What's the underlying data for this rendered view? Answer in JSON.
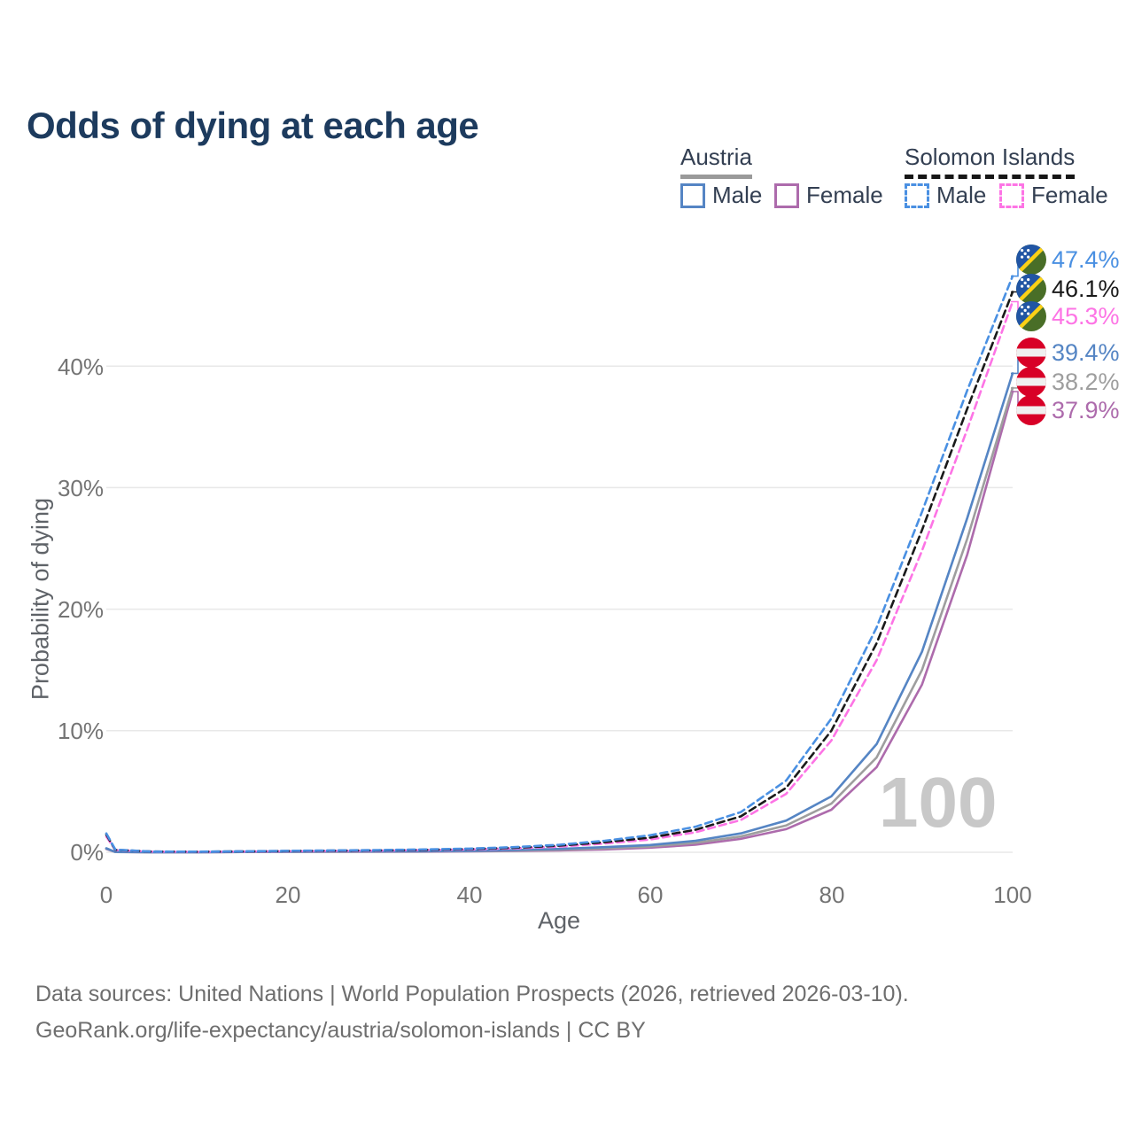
{
  "title": "Odds of dying at each age",
  "legend": {
    "groups": [
      {
        "name": "Austria",
        "line_style": "solid",
        "items": [
          {
            "label": "Male",
            "color": "#5585c4"
          },
          {
            "label": "Female",
            "color": "#ad6bac"
          }
        ]
      },
      {
        "name": "Solomon Islands",
        "line_style": "dashed",
        "items": [
          {
            "label": "Male",
            "color": "#4a90e2"
          },
          {
            "label": "Female",
            "color": "#fd74e5"
          }
        ]
      }
    ]
  },
  "y_axis": {
    "title": "Probability of dying",
    "ticks": [
      "0%",
      "10%",
      "20%",
      "30%",
      "40%"
    ]
  },
  "x_axis": {
    "title": "Age",
    "ticks": [
      "0",
      "20",
      "40",
      "60",
      "80",
      "100"
    ]
  },
  "watermark": "100",
  "end_labels": [
    {
      "value": "47.4%",
      "flag": "solomon-islands",
      "color": "#4a90e2",
      "series": "Solomon Islands Male"
    },
    {
      "value": "46.1%",
      "flag": "solomon-islands",
      "color": "#1a1a1a",
      "series": "Solomon Islands Both sexes"
    },
    {
      "value": "45.3%",
      "flag": "solomon-islands",
      "color": "#fd74e5",
      "series": "Solomon Islands Female"
    },
    {
      "value": "39.4%",
      "flag": "austria",
      "color": "#5585c4",
      "series": "Austria Male"
    },
    {
      "value": "38.2%",
      "flag": "austria",
      "color": "#9e9e9e",
      "series": "Austria Both sexes"
    },
    {
      "value": "37.9%",
      "flag": "austria",
      "color": "#ad6bac",
      "series": "Austria Female"
    }
  ],
  "footer": {
    "line1": "Data sources: United Nations | World Population Prospects (2026, retrieved 2026-03-10).",
    "line2": "GeoRank.org/life-expectancy/austria/solomon-islands | CC BY"
  },
  "chart_data": {
    "type": "line",
    "title": "Odds of dying at each age",
    "xlabel": "Age",
    "ylabel": "Probability of dying",
    "xlim": [
      0,
      100
    ],
    "ylim_percent": [
      0,
      40
    ],
    "grid": "horizontal-only",
    "legend_position": "top-right",
    "ages": [
      0,
      1,
      5,
      10,
      15,
      20,
      25,
      30,
      35,
      40,
      45,
      50,
      55,
      60,
      65,
      70,
      75,
      80,
      85,
      90,
      95,
      100
    ],
    "series": [
      {
        "name": "Austria Female",
        "color": "#ad6bac",
        "dash": false,
        "values_pct": [
          0.27,
          0.02,
          0.008,
          0.008,
          0.02,
          0.03,
          0.035,
          0.04,
          0.05,
          0.07,
          0.1,
          0.15,
          0.23,
          0.38,
          0.62,
          1.1,
          1.9,
          3.5,
          7.0,
          13.8,
          24.5,
          37.9
        ]
      },
      {
        "name": "Austria Both sexes",
        "color": "#9e9e9e",
        "dash": false,
        "values_pct": [
          0.3,
          0.025,
          0.009,
          0.009,
          0.025,
          0.045,
          0.05,
          0.06,
          0.07,
          0.1,
          0.14,
          0.21,
          0.32,
          0.48,
          0.78,
          1.3,
          2.2,
          4.0,
          7.8,
          15.0,
          25.8,
          38.2
        ]
      },
      {
        "name": "Austria Male",
        "color": "#5585c4",
        "dash": false,
        "values_pct": [
          0.33,
          0.03,
          0.01,
          0.01,
          0.03,
          0.06,
          0.07,
          0.08,
          0.09,
          0.12,
          0.18,
          0.28,
          0.42,
          0.6,
          0.95,
          1.55,
          2.6,
          4.6,
          8.9,
          16.5,
          27.5,
          39.4
        ]
      },
      {
        "name": "Solomon Islands Female",
        "color": "#fd74e5",
        "dash": true,
        "values_pct": [
          1.3,
          0.18,
          0.05,
          0.04,
          0.06,
          0.09,
          0.11,
          0.14,
          0.18,
          0.23,
          0.32,
          0.47,
          0.72,
          1.05,
          1.65,
          2.65,
          4.8,
          9.2,
          15.8,
          24.8,
          34.8,
          45.3
        ]
      },
      {
        "name": "Solomon Islands Both sexes",
        "color": "#1a1a1a",
        "dash": true,
        "values_pct": [
          1.45,
          0.2,
          0.055,
          0.045,
          0.07,
          0.1,
          0.13,
          0.16,
          0.2,
          0.27,
          0.37,
          0.55,
          0.83,
          1.2,
          1.85,
          2.95,
          5.3,
          10.0,
          17.2,
          26.5,
          36.5,
          46.1
        ]
      },
      {
        "name": "Solomon Islands Male",
        "color": "#4a90e2",
        "dash": true,
        "values_pct": [
          1.55,
          0.22,
          0.06,
          0.05,
          0.08,
          0.12,
          0.15,
          0.18,
          0.23,
          0.3,
          0.42,
          0.62,
          0.95,
          1.4,
          2.1,
          3.3,
          5.9,
          11.0,
          18.5,
          28.0,
          38.0,
          47.4
        ]
      }
    ]
  }
}
